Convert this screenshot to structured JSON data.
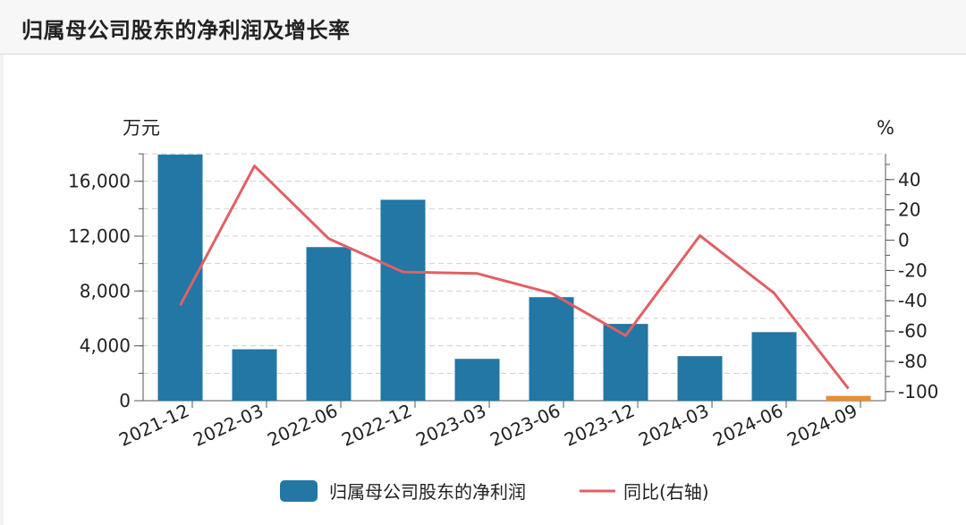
{
  "header": {
    "title": "归属母公司股东的净利润及增长率"
  },
  "chart_data": {
    "type": "bar",
    "title": "归属母公司股东的净利润及增长率",
    "categories": [
      "2021-12",
      "2022-03",
      "2022-06",
      "2022-12",
      "2023-03",
      "2023-06",
      "2023-12",
      "2024-03",
      "2024-06",
      "2024-09"
    ],
    "left_axis": {
      "unit": "万元",
      "min": 0,
      "max": 18000,
      "ticks": [
        0,
        4000,
        8000,
        12000,
        16000
      ],
      "tick_labels": [
        "0",
        "4,000",
        "8,000",
        "12,000",
        "16,000"
      ]
    },
    "right_axis": {
      "unit": "%",
      "min": -106,
      "max": 57,
      "ticks": [
        -100,
        -80,
        -60,
        -40,
        -20,
        0,
        20,
        40
      ],
      "tick_labels": [
        "-100",
        "-80",
        "-60",
        "-40",
        "-20",
        "0",
        "20",
        "40"
      ]
    },
    "series": [
      {
        "name": "归属母公司股东的净利润",
        "kind": "bar",
        "axis": "left",
        "color": "#2277a4",
        "values": [
          17950,
          3750,
          11200,
          14650,
          3050,
          7550,
          5600,
          3250,
          5000,
          350
        ],
        "highlight_last_color": "#e8902f"
      },
      {
        "name": "同比(右轴)",
        "kind": "line",
        "axis": "right",
        "color": "#e06066",
        "values": [
          -43,
          49,
          1,
          -21,
          -22,
          -35,
          -63,
          3,
          -35,
          -98
        ]
      }
    ],
    "legend": {
      "position": "bottom",
      "items": [
        "归属母公司股东的净利润",
        "同比(右轴)"
      ]
    },
    "grid": true
  }
}
